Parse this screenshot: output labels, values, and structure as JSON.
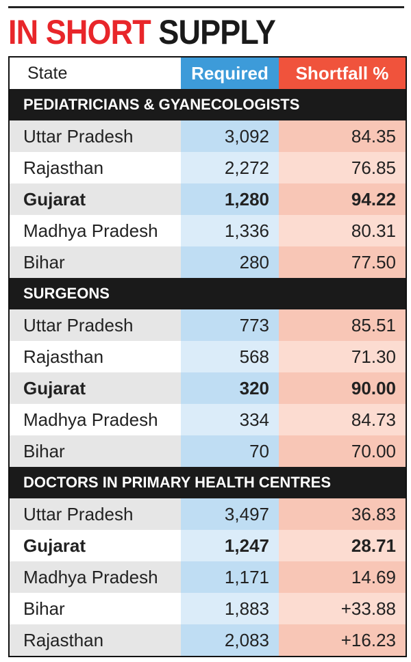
{
  "title": {
    "part1": "IN SHORT",
    "part2": "SUPPLY"
  },
  "header": [
    "State",
    "Required",
    "Shortfall %"
  ],
  "sections": [
    {
      "title": "PEDIATRICIANS & GYANECOLOGISTS",
      "rows": [
        {
          "state": "Uttar Pradesh",
          "required": "3,092",
          "shortfall": "84.35"
        },
        {
          "state": "Rajasthan",
          "required": "2,272",
          "shortfall": "76.85"
        },
        {
          "state": "Gujarat",
          "required": "1,280",
          "shortfall": "94.22",
          "bold": true
        },
        {
          "state": "Madhya Pradesh",
          "required": "1,336",
          "shortfall": "80.31"
        },
        {
          "state": "Bihar",
          "required": "280",
          "shortfall": "77.50"
        }
      ]
    },
    {
      "title": "SURGEONS",
      "rows": [
        {
          "state": "Uttar Pradesh",
          "required": "773",
          "shortfall": "85.51"
        },
        {
          "state": "Rajasthan",
          "required": "568",
          "shortfall": "71.30"
        },
        {
          "state": "Gujarat",
          "required": "320",
          "shortfall": "90.00",
          "bold": true
        },
        {
          "state": "Madhya Pradesh",
          "required": "334",
          "shortfall": "84.73"
        },
        {
          "state": "Bihar",
          "required": "70",
          "shortfall": "70.00"
        }
      ]
    },
    {
      "title": "DOCTORS IN PRIMARY HEALTH CENTRES",
      "rows": [
        {
          "state": "Uttar Pradesh",
          "required": "3,497",
          "shortfall": "36.83"
        },
        {
          "state": "Gujarat",
          "required": "1,247",
          "shortfall": "28.71",
          "bold": true
        },
        {
          "state": "Madhya Pradesh",
          "required": "1,171",
          "shortfall": "14.69"
        },
        {
          "state": "Bihar",
          "required": "1,883",
          "shortfall": "+33.88"
        },
        {
          "state": "Rajasthan",
          "required": "2,083",
          "shortfall": "+16.23"
        }
      ]
    }
  ]
}
